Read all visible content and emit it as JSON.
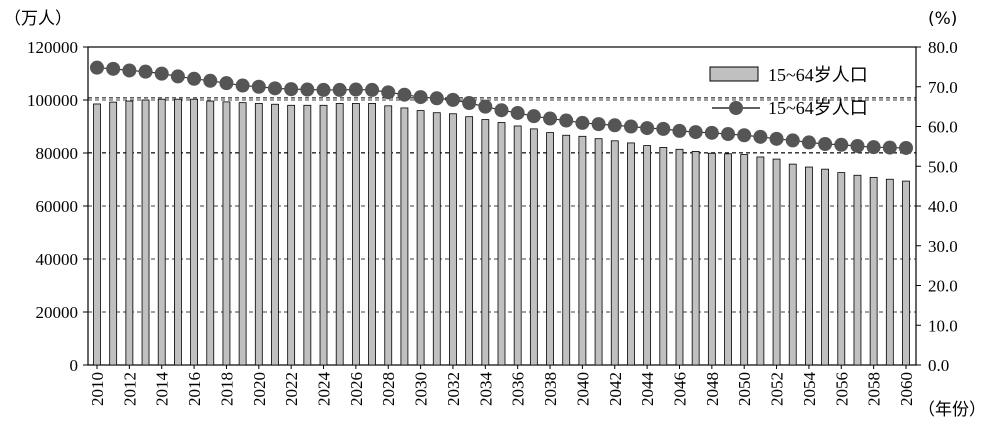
{
  "chart_data": {
    "type": "bar",
    "left_unit": "（万人）",
    "right_unit": "(%)",
    "x_unit": "（年份）",
    "x": [
      2010,
      2011,
      2012,
      2013,
      2014,
      2015,
      2016,
      2017,
      2018,
      2019,
      2020,
      2021,
      2022,
      2023,
      2024,
      2025,
      2026,
      2027,
      2028,
      2029,
      2030,
      2031,
      2032,
      2033,
      2034,
      2035,
      2036,
      2037,
      2038,
      2039,
      2040,
      2041,
      2042,
      2043,
      2044,
      2045,
      2046,
      2047,
      2048,
      2049,
      2050,
      2051,
      2052,
      2053,
      2054,
      2055,
      2056,
      2057,
      2058,
      2059,
      2060
    ],
    "x_tick_labels": [
      "2010",
      "2012",
      "2014",
      "2016",
      "2018",
      "2020",
      "2022",
      "2024",
      "2026",
      "2028",
      "2030",
      "2032",
      "2034",
      "2036",
      "2038",
      "2040",
      "2042",
      "2044",
      "2046",
      "2048",
      "2050",
      "2052",
      "2054",
      "2056",
      "2058",
      "2060"
    ],
    "y_left": {
      "ylim": [
        0,
        120000
      ],
      "ticks": [
        "0",
        "20000",
        "40000",
        "60000",
        "80000",
        "100000",
        "120000"
      ]
    },
    "y_right": {
      "ylim": [
        0,
        80
      ],
      "ticks": [
        "0.0",
        "10.0",
        "20.0",
        "30.0",
        "40.0",
        "50.0",
        "60.0",
        "70.0",
        "80.0"
      ]
    },
    "series": [
      {
        "name": "15~64岁人口",
        "kind": "bar",
        "axis": "left",
        "color": "#c0c0c0",
        "values": [
          98500,
          99200,
          99600,
          100000,
          100300,
          100300,
          100300,
          99600,
          99300,
          99000,
          98700,
          98400,
          98000,
          98000,
          98000,
          98700,
          98700,
          98700,
          97800,
          97000,
          96000,
          95200,
          94800,
          93700,
          92600,
          91500,
          90200,
          89100,
          87700,
          86700,
          86300,
          85400,
          84600,
          83800,
          82800,
          82100,
          81400,
          80600,
          79900,
          79700,
          79400,
          78500,
          77700,
          75800,
          74700,
          73900,
          72600,
          71600,
          70800,
          70100,
          69400
        ]
      },
      {
        "name": "15~64岁人口",
        "kind": "line",
        "axis": "right",
        "color": "#555555",
        "values": [
          74.8,
          74.5,
          74.1,
          73.8,
          73.3,
          72.6,
          72.0,
          71.5,
          70.9,
          70.3,
          70.0,
          69.6,
          69.4,
          69.3,
          69.2,
          69.2,
          69.3,
          69.2,
          68.6,
          68.0,
          67.4,
          67.1,
          66.7,
          65.9,
          65.0,
          64.1,
          63.4,
          62.6,
          62.0,
          61.5,
          60.9,
          60.6,
          60.3,
          60.0,
          59.6,
          59.4,
          58.9,
          58.6,
          58.4,
          58.1,
          57.8,
          57.4,
          56.9,
          56.5,
          56.0,
          55.6,
          55.4,
          55.1,
          54.8,
          54.7,
          54.6
        ]
      }
    ],
    "dashed_reference_lines": [
      {
        "axis": "right",
        "value": 67.2
      },
      {
        "axis": "right",
        "value": 53.4
      }
    ],
    "legend_placement": "top-right",
    "grid": "horizontal dashed"
  }
}
